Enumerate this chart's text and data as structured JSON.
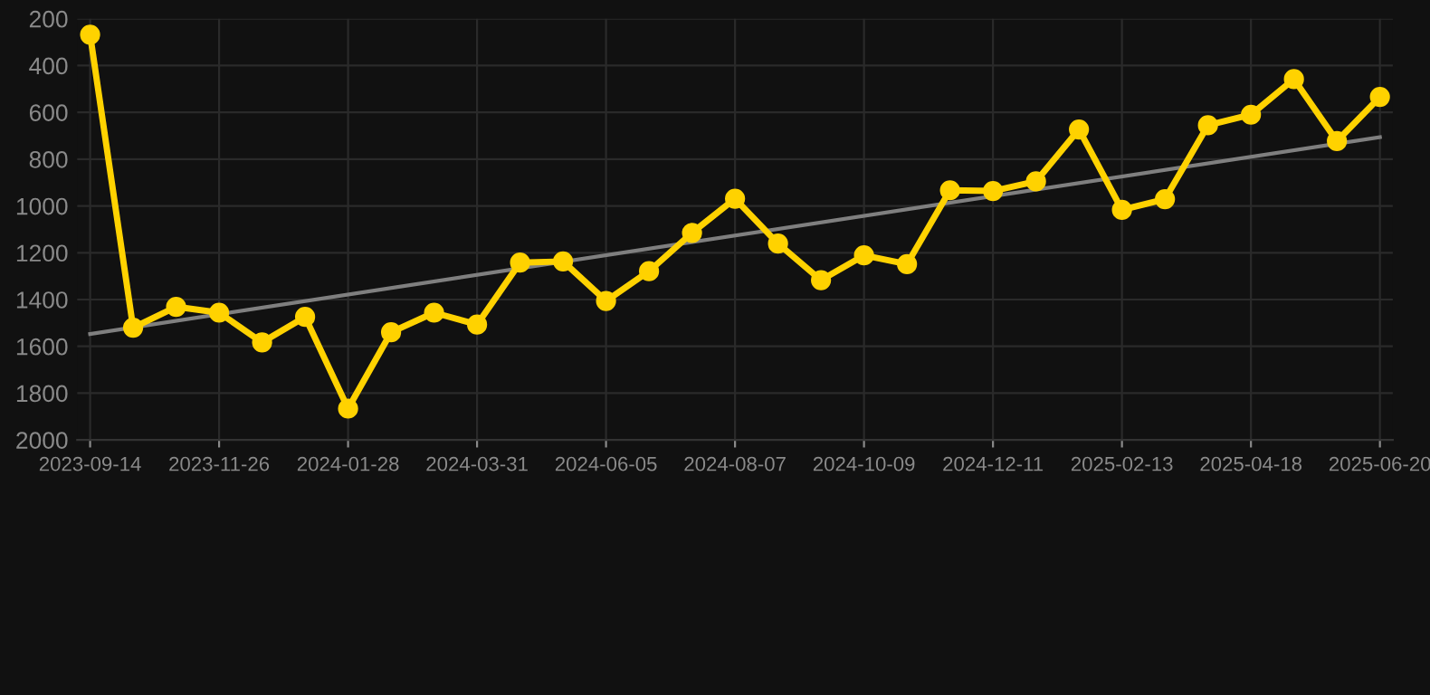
{
  "chart_data": {
    "type": "line",
    "categories": [
      "2023-09-14",
      null,
      null,
      "2023-11-26",
      null,
      null,
      "2024-01-28",
      null,
      null,
      "2024-03-31",
      null,
      null,
      "2024-06-05",
      null,
      null,
      "2024-08-07",
      null,
      null,
      "2024-10-09",
      null,
      null,
      "2024-12-11",
      null,
      null,
      "2025-02-13",
      null,
      null,
      "2025-04-18",
      null,
      null,
      "2025-06-20"
    ],
    "series": [
      {
        "color": "#ffd200",
        "marker": "circle",
        "values": [
          268,
          1520,
          1431,
          1456,
          1583,
          1474,
          1866,
          1540,
          1456,
          1507,
          1242,
          1237,
          1406,
          1279,
          1115,
          969,
          1161,
          1317,
          1211,
          1249,
          933,
          936,
          895,
          673,
          1017,
          971,
          655,
          610,
          458,
          723,
          534
        ]
      },
      {
        "color": "#7f7f7f",
        "marker": "none",
        "values": [
          1547,
          null,
          null,
          null,
          null,
          null,
          null,
          null,
          null,
          null,
          null,
          null,
          null,
          null,
          null,
          null,
          null,
          null,
          null,
          null,
          null,
          null,
          null,
          null,
          null,
          null,
          null,
          null,
          null,
          null,
          706
        ]
      }
    ],
    "ylim": [
      2000,
      200
    ],
    "yticks": [
      200,
      400,
      600,
      800,
      1000,
      1200,
      1400,
      1600,
      1800,
      2000
    ],
    "grid": true,
    "line_style": "solid"
  }
}
